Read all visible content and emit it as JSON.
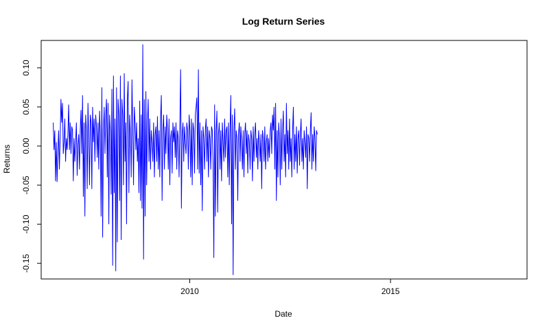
{
  "chart_data": {
    "type": "line",
    "title": "Log Return Series",
    "xlabel": "Date",
    "ylabel": "Returns",
    "xlim": [
      2006.3,
      2018.4
    ],
    "ylim": [
      -0.17,
      0.135
    ],
    "x_ticks": [
      2010,
      2015
    ],
    "x_tick_labels": [
      "2010",
      "2015"
    ],
    "y_ticks": [
      0.1,
      0.05,
      0.0,
      -0.05,
      -0.1,
      -0.15
    ],
    "y_tick_labels": [
      "0.10",
      "0.05",
      "0.00",
      "-0.05",
      "-0.10",
      "-0.15"
    ],
    "grid": false,
    "legend": "none",
    "series": [
      {
        "color": "#0000ff",
        "x_start": 2006.6,
        "x_step": 0.01923,
        "values": [
          0.03,
          -0.005,
          0.02,
          -0.045,
          0.005,
          -0.046,
          -0.008,
          0.02,
          -0.03,
          0.01,
          0.06,
          0.03,
          0.055,
          -0.01,
          0.005,
          0.035,
          -0.02,
          0.01,
          -0.005,
          0.015,
          0.053,
          -0.005,
          0.03,
          -0.01,
          0.025,
          0.02,
          -0.045,
          0.01,
          -0.02,
          0.005,
          0.03,
          -0.038,
          0.002,
          0.015,
          -0.03,
          0.02,
          0.046,
          -0.01,
          0.065,
          -0.065,
          0.03,
          -0.09,
          0.04,
          0.02,
          -0.055,
          0.055,
          0.01,
          -0.05,
          0.04,
          0.03,
          -0.055,
          0.05,
          0.005,
          0.035,
          -0.02,
          0.04,
          0.025,
          -0.015,
          0.03,
          -0.03,
          0.045,
          0.015,
          -0.09,
          0.075,
          -0.117,
          0.02,
          0.05,
          -0.01,
          0.04,
          0.06,
          -0.04,
          0.055,
          -0.1,
          0.04,
          0.02,
          -0.062,
          0.073,
          -0.153,
          0.09,
          -0.06,
          0.035,
          -0.16,
          0.075,
          -0.123,
          0.06,
          0.04,
          -0.07,
          0.09,
          -0.12,
          0.06,
          0.04,
          -0.05,
          0.093,
          -0.02,
          0.03,
          -0.1,
          0.06,
          0.083,
          -0.06,
          0.04,
          0.015,
          -0.04,
          0.085,
          0.02,
          -0.05,
          0.05,
          0.03,
          -0.005,
          0.03,
          -0.02,
          0.01,
          -0.06,
          0.058,
          -0.07,
          0.04,
          -0.08,
          0.13,
          -0.145,
          0.06,
          -0.09,
          0.07,
          -0.05,
          0.03,
          0.06,
          -0.02,
          0.035,
          -0.03,
          0.02,
          0.005,
          -0.02,
          0.03,
          -0.04,
          0.015,
          0.025,
          -0.02,
          0.038,
          -0.03,
          0.02,
          -0.04,
          0.035,
          0.065,
          -0.07,
          0.02,
          0.04,
          -0.03,
          0.025,
          -0.01,
          0.04,
          0.02,
          -0.03,
          0.035,
          -0.05,
          0.01,
          0.02,
          -0.035,
          0.03,
          0.005,
          0.025,
          -0.015,
          0.03,
          -0.03,
          0.02,
          0.01,
          -0.04,
          0.03,
          0.098,
          -0.08,
          0.015,
          0.03,
          -0.02,
          0.025,
          0.005,
          -0.01,
          0.03,
          0.02,
          -0.03,
          0.04,
          0.02,
          -0.04,
          0.035,
          -0.05,
          0.03,
          0.02,
          -0.035,
          0.04,
          0.05,
          0.062,
          -0.03,
          0.098,
          -0.035,
          0.03,
          -0.05,
          0.02,
          -0.083,
          0.025,
          0.01,
          -0.03,
          0.02,
          0.035,
          -0.02,
          0.025,
          -0.04,
          0.02,
          0.01,
          -0.03,
          0.025,
          0.02,
          -0.02,
          -0.143,
          0.053,
          -0.09,
          0.02,
          0.045,
          -0.085,
          0.015,
          0.03,
          -0.03,
          0.02,
          -0.045,
          0.03,
          0.005,
          -0.02,
          0.035,
          -0.015,
          0.02,
          0.025,
          -0.04,
          0.03,
          -0.05,
          0.02,
          0.065,
          -0.1,
          0.04,
          -0.165,
          0.02,
          0.048,
          -0.03,
          0.02,
          0.01,
          -0.07,
          0.015,
          0.03,
          -0.02,
          0.025,
          0.005,
          -0.03,
          0.02,
          -0.04,
          0.015,
          0.03,
          -0.01,
          0.02,
          -0.035,
          0.015,
          0.005,
          -0.03,
          0.02,
          0.01,
          -0.045,
          0.025,
          -0.02,
          0.015,
          0.03,
          -0.015,
          0.01,
          -0.03,
          0.02,
          0.005,
          -0.02,
          0.015,
          -0.055,
          0.02,
          0.01,
          -0.02,
          0.025,
          -0.03,
          0.005,
          0.015,
          -0.02,
          0.01,
          -0.015,
          0.02,
          0.03,
          -0.01,
          0.04,
          0.02,
          0.05,
          -0.03,
          0.055,
          -0.07,
          0.02,
          -0.04,
          0.03,
          0.01,
          -0.05,
          0.035,
          -0.03,
          0.02,
          0.045,
          -0.02,
          0.015,
          -0.04,
          0.055,
          -0.01,
          0.02,
          -0.03,
          0.035,
          -0.02,
          0.01,
          -0.04,
          0.02,
          0.05,
          -0.03,
          0.015,
          -0.02,
          0.025,
          -0.035,
          0.01,
          0.02,
          -0.025,
          0.015,
          0.035,
          -0.02,
          0.01,
          -0.03,
          0.02,
          0.005,
          -0.015,
          0.025,
          -0.055,
          0.015,
          0.01,
          -0.02,
          0.02,
          0.043,
          -0.03,
          0.015,
          -0.02,
          0.025,
          0.01,
          -0.032,
          0.02,
          0.015
        ]
      }
    ]
  }
}
